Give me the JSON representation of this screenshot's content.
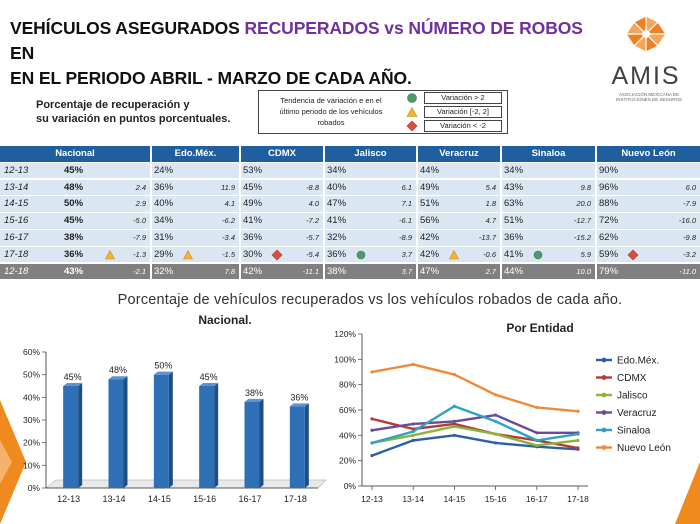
{
  "title": {
    "line1_a": "VEHÍCULOS ASEGURADOS ",
    "line1_b": "RECUPERADOS vs NÚMERO DE ROBOS",
    "line1_c": " EN",
    "line2": "EN EL PERIODO ABRIL - MARZO DE CADA AÑO."
  },
  "logo": {
    "name": "AMIS",
    "subtitle": "ASOCIACIÓN MEXICANA DE INSTITUCIONES DE SEGUROS",
    "icon": "amis-logo-icon",
    "color": "#f07f1f"
  },
  "subtitle": {
    "line1": "Porcentaje de recuperación y",
    "line2": "su variación en puntos porcentuales."
  },
  "legend": {
    "description_line1": "Tendencia de variación e en el",
    "description_line2": "último periodo de los vehículos",
    "description_line3": "robados",
    "items": [
      {
        "label": "Variación > 2",
        "icon": "green-circle-icon",
        "color": "#4e9a6a"
      },
      {
        "label": "Variación [-2, 2]",
        "icon": "yellow-triangle-icon",
        "color": "#f2b233"
      },
      {
        "label": "Variación < -2",
        "icon": "red-diamond-icon",
        "color": "#d94f3a"
      }
    ]
  },
  "table": {
    "header_color": "#1f5fa0",
    "row_color": "#dbe6f3",
    "last_row_color": "#808080",
    "headers": [
      "Nacional",
      "Edo.Méx.",
      "CDMX",
      "Jalisco",
      "Veracruz",
      "Sinaloa",
      "Nuevo León"
    ],
    "rows": [
      {
        "year": "12-13",
        "cells": [
          [
            "45%",
            "",
            ""
          ],
          [
            "24%",
            "",
            ""
          ],
          [
            "53%",
            "",
            ""
          ],
          [
            "34%",
            "",
            ""
          ],
          [
            "44%",
            "",
            ""
          ],
          [
            "34%",
            "",
            ""
          ],
          [
            "90%",
            "",
            ""
          ]
        ]
      },
      {
        "year": "13-14",
        "cells": [
          [
            "48%",
            "2.4",
            ""
          ],
          [
            "36%",
            "11.9",
            ""
          ],
          [
            "45%",
            "-8.8",
            ""
          ],
          [
            "40%",
            "6.1",
            ""
          ],
          [
            "49%",
            "5.4",
            ""
          ],
          [
            "43%",
            "9.8",
            ""
          ],
          [
            "96%",
            "6.0",
            ""
          ]
        ]
      },
      {
        "year": "14-15",
        "cells": [
          [
            "50%",
            "2.9",
            ""
          ],
          [
            "40%",
            "4.1",
            ""
          ],
          [
            "49%",
            "4.0",
            ""
          ],
          [
            "47%",
            "7.1",
            ""
          ],
          [
            "51%",
            "1.8",
            ""
          ],
          [
            "63%",
            "20.0",
            ""
          ],
          [
            "88%",
            "-7.9",
            ""
          ]
        ]
      },
      {
        "year": "15-16",
        "cells": [
          [
            "45%",
            "-5.0",
            ""
          ],
          [
            "34%",
            "-6.2",
            ""
          ],
          [
            "41%",
            "-7.2",
            ""
          ],
          [
            "41%",
            "-6.1",
            ""
          ],
          [
            "56%",
            "4.7",
            ""
          ],
          [
            "51%",
            "-12.7",
            ""
          ],
          [
            "72%",
            "-16.0",
            ""
          ]
        ]
      },
      {
        "year": "16-17",
        "cells": [
          [
            "38%",
            "-7.9",
            ""
          ],
          [
            "31%",
            "-3.4",
            ""
          ],
          [
            "36%",
            "-5.7",
            ""
          ],
          [
            "32%",
            "-8.9",
            ""
          ],
          [
            "42%",
            "-13.7",
            ""
          ],
          [
            "36%",
            "-15.2",
            ""
          ],
          [
            "62%",
            "-9.8",
            ""
          ]
        ]
      },
      {
        "year": "17-18",
        "cells": [
          [
            "36%",
            "-1.3",
            "yellow-triangle-icon"
          ],
          [
            "29%",
            "-1.5",
            "yellow-triangle-icon"
          ],
          [
            "30%",
            "-5.4",
            "red-diamond-icon"
          ],
          [
            "36%",
            "3.7",
            "green-circle-icon"
          ],
          [
            "42%",
            "-0.6",
            "yellow-triangle-icon"
          ],
          [
            "41%",
            "5.9",
            "green-circle-icon"
          ],
          [
            "59%",
            "-3.2",
            "red-diamond-icon"
          ]
        ]
      },
      {
        "year": "12-18",
        "cells": [
          [
            "43%",
            "-2.1",
            ""
          ],
          [
            "32%",
            "7.8",
            ""
          ],
          [
            "42%",
            "-11.1",
            ""
          ],
          [
            "38%",
            "3.7",
            ""
          ],
          [
            "47%",
            "2.7",
            ""
          ],
          [
            "44%",
            "10.0",
            ""
          ],
          [
            "79%",
            "-11.0",
            ""
          ]
        ]
      }
    ]
  },
  "charts_heading": "Porcentaje de vehículos recuperados vs los vehículos robados de cada año.",
  "chart_data": [
    {
      "type": "bar",
      "title": "Nacional.",
      "categories": [
        "12-13",
        "13-14",
        "14-15",
        "15-16",
        "16-17",
        "17-18"
      ],
      "values": [
        45,
        48,
        50,
        45,
        38,
        36
      ],
      "data_labels": [
        "45%",
        "48%",
        "50%",
        "45%",
        "38%",
        "36%"
      ],
      "ylim": [
        0,
        60
      ],
      "yticks": [
        "0%",
        "10%",
        "20%",
        "30%",
        "40%",
        "50%",
        "60%"
      ],
      "bar_color": "#2e6fb5",
      "grid": false
    },
    {
      "type": "line",
      "title": "Por Entidad",
      "categories": [
        "12-13",
        "13-14",
        "14-15",
        "15-16",
        "16-17",
        "17-18"
      ],
      "ylim": [
        0,
        120
      ],
      "yticks": [
        "0%",
        "20%",
        "40%",
        "60%",
        "80%",
        "100%",
        "120%"
      ],
      "legend_position": "right",
      "grid": false,
      "series": [
        {
          "name": "Edo.Méx.",
          "values": [
            24,
            36,
            40,
            34,
            31,
            29
          ],
          "color": "#2e5ea8"
        },
        {
          "name": "CDMX",
          "values": [
            53,
            45,
            49,
            41,
            36,
            30
          ],
          "color": "#b23a3a"
        },
        {
          "name": "Jalisco",
          "values": [
            34,
            40,
            47,
            41,
            32,
            36
          ],
          "color": "#8cb43c"
        },
        {
          "name": "Veracruz",
          "values": [
            44,
            49,
            51,
            56,
            42,
            42
          ],
          "color": "#6a4a9a"
        },
        {
          "name": "Sinaloa",
          "values": [
            34,
            43,
            63,
            51,
            36,
            41
          ],
          "color": "#2fa3c0"
        },
        {
          "name": "Nuevo León",
          "values": [
            90,
            96,
            88,
            72,
            62,
            59
          ],
          "color": "#ee8a3a"
        }
      ]
    }
  ]
}
